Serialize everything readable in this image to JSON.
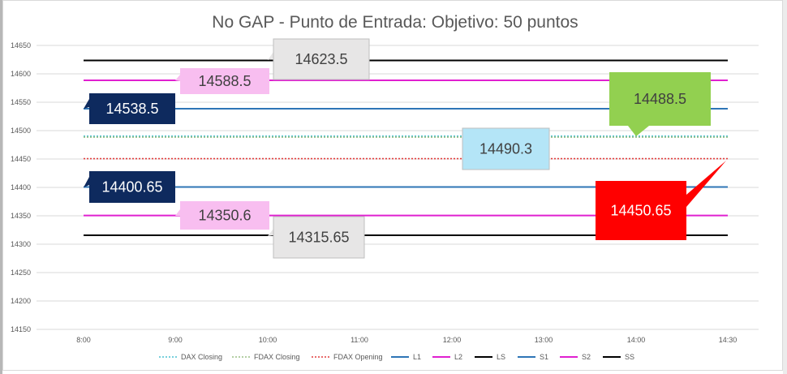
{
  "chart_data": {
    "type": "line",
    "title": "No GAP - Punto de Entrada:   Objetivo: 50 puntos",
    "x": [
      "8:00",
      "9:00",
      "10:00",
      "11:00",
      "12:00",
      "13:00",
      "14:00",
      "14:30"
    ],
    "y_ticks": [
      14150,
      14200,
      14250,
      14300,
      14350,
      14400,
      14450,
      14500,
      14550,
      14600,
      14650
    ],
    "ylim": [
      14150,
      14650
    ],
    "grid": true,
    "legend_position": "bottom",
    "series": [
      {
        "name": "DAX Closing",
        "value": 14490.3,
        "color": "#4bc0d0",
        "style": "dotted"
      },
      {
        "name": "FDAX Closing",
        "value": 14488.5,
        "color": "#9bbf85",
        "style": "dotted"
      },
      {
        "name": "FDAX Opening",
        "value": 14450.65,
        "color": "#e23c3c",
        "style": "dotted"
      },
      {
        "name": "L1",
        "value": 14538.5,
        "color": "#2e75b6",
        "style": "solid"
      },
      {
        "name": "L2",
        "value": 14588.5,
        "color": "#e020d0",
        "style": "solid"
      },
      {
        "name": "LS",
        "value": 14623.5,
        "color": "#000000",
        "style": "solid"
      },
      {
        "name": "S1",
        "value": 14400.65,
        "color": "#2e75b6",
        "style": "solid"
      },
      {
        "name": "S2",
        "value": 14350.6,
        "color": "#e020d0",
        "style": "solid"
      },
      {
        "name": "SS",
        "value": 14315.65,
        "color": "#000000",
        "style": "solid"
      }
    ],
    "callouts": [
      {
        "text": "14623.5",
        "fill": "#e7e6e6",
        "text_color": "#404040"
      },
      {
        "text": "14588.5",
        "fill": "#f8bef0",
        "text_color": "#404040"
      },
      {
        "text": "14538.5",
        "fill": "#0e2a5e",
        "text_color": "#ffffff"
      },
      {
        "text": "14488.5",
        "fill": "#92d050",
        "text_color": "#404040"
      },
      {
        "text": "14490.3",
        "fill": "#b4e5f7",
        "text_color": "#404040"
      },
      {
        "text": "14400.65",
        "fill": "#0e2a5e",
        "text_color": "#ffffff"
      },
      {
        "text": "14350.6",
        "fill": "#f8bef0",
        "text_color": "#404040"
      },
      {
        "text": "14315.65",
        "fill": "#e7e6e6",
        "text_color": "#404040"
      },
      {
        "text": "14450.65",
        "fill": "#ff0000",
        "text_color": "#ffffff"
      }
    ]
  }
}
